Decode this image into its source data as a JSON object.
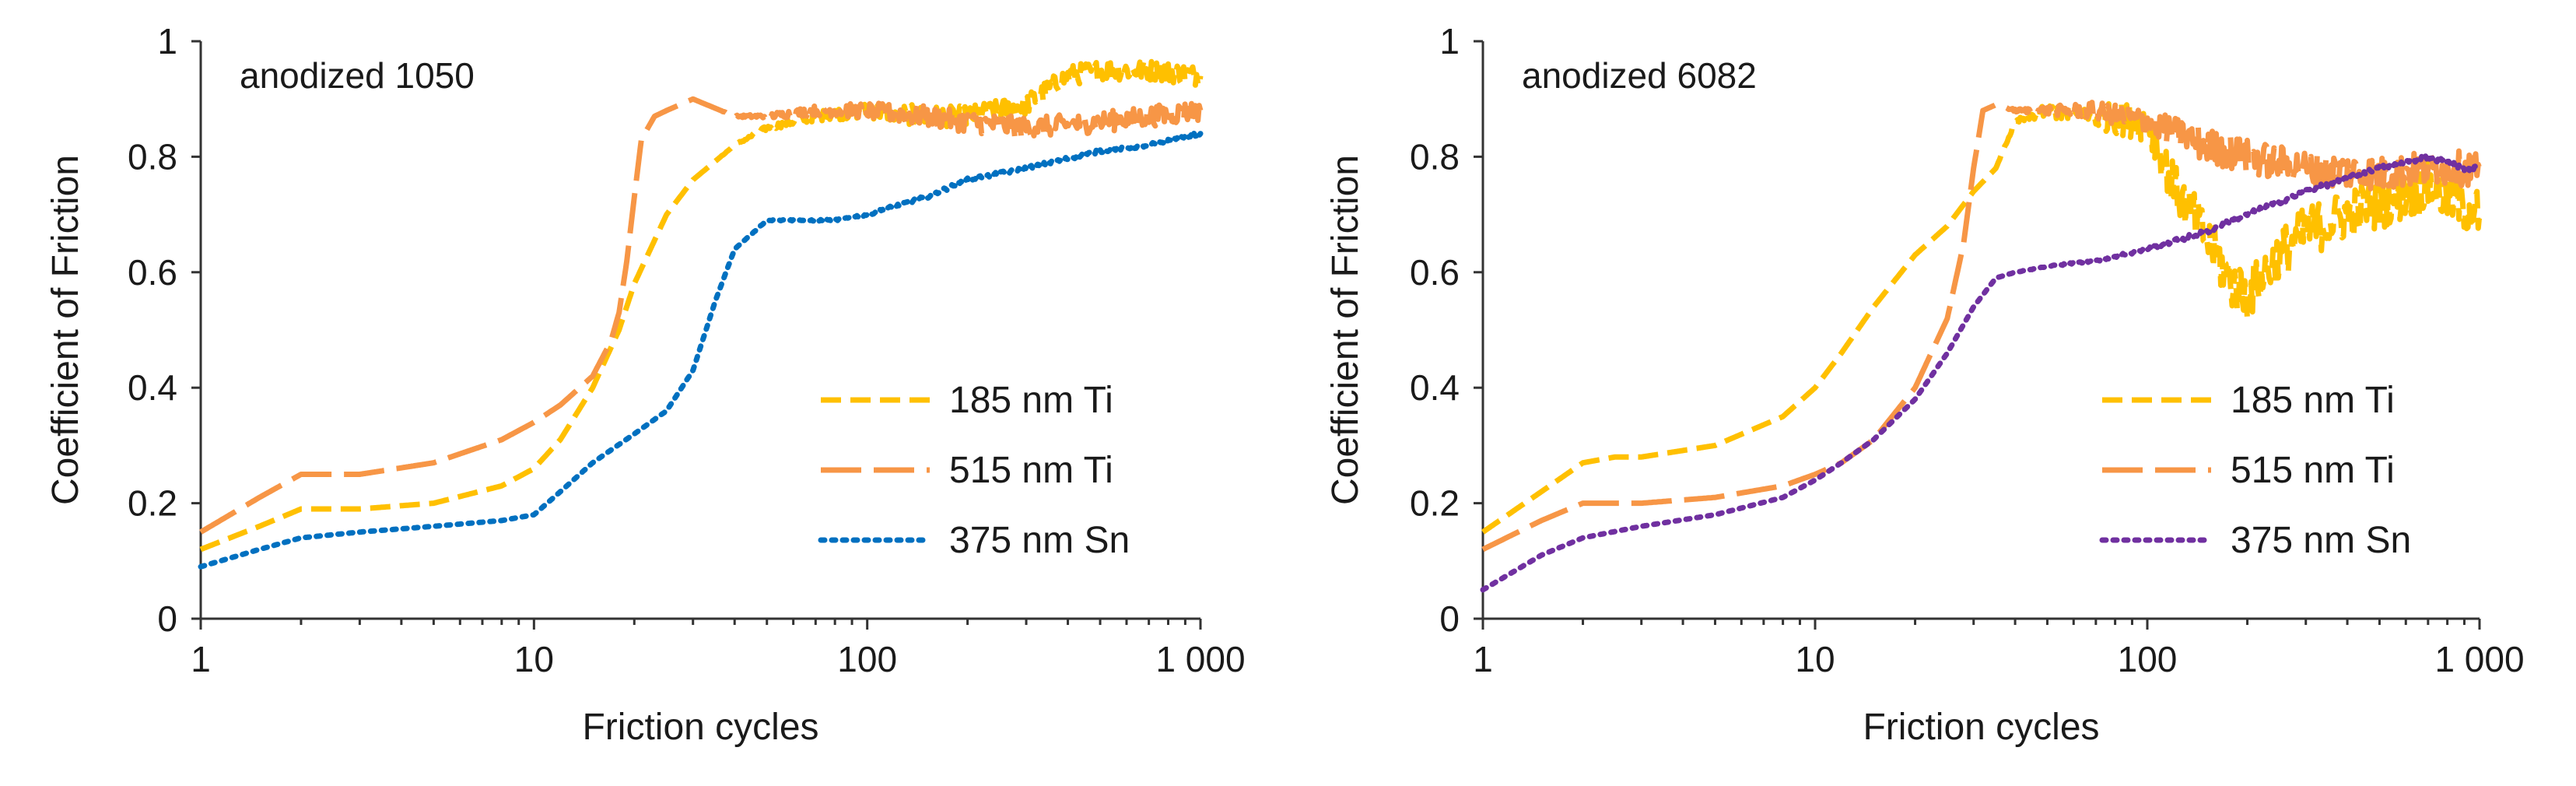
{
  "chart_data": [
    {
      "type": "line",
      "title": "anodized 1050",
      "xlabel": "Friction cycles",
      "ylabel": "Coefficient  of  Friction",
      "x_scale": "log",
      "xlim": [
        1,
        1000
      ],
      "ylim": [
        0,
        1
      ],
      "x_ticks": [
        1,
        10,
        100,
        1000
      ],
      "x_tick_labels": [
        "1",
        "10",
        "100",
        "1 000"
      ],
      "y_ticks": [
        0,
        0.2,
        0.4,
        0.6,
        0.8,
        1
      ],
      "y_tick_labels": [
        "0",
        "0.2",
        "0.4",
        "0.6",
        "0.8",
        "1"
      ],
      "legend_position": "bottom-right",
      "series": [
        {
          "name": "185 nm Ti",
          "color": "#FFC000",
          "dash": "short-dash",
          "x": [
            1,
            1.5,
            2,
            3,
            5,
            8,
            10,
            12,
            15,
            18,
            20,
            25,
            30,
            40,
            50,
            70,
            100,
            150,
            200,
            300,
            400,
            500,
            700,
            1000
          ],
          "y": [
            0.12,
            0.16,
            0.19,
            0.19,
            0.2,
            0.23,
            0.26,
            0.31,
            0.4,
            0.5,
            0.58,
            0.7,
            0.76,
            0.82,
            0.85,
            0.87,
            0.88,
            0.87,
            0.87,
            0.89,
            0.94,
            0.95,
            0.95,
            0.94
          ],
          "noise": 0.018
        },
        {
          "name": "515 nm Ti",
          "color": "#F79646",
          "dash": "long-dash",
          "x": [
            1,
            1.5,
            2,
            3,
            5,
            8,
            10,
            12,
            15,
            17,
            18,
            19,
            20,
            21,
            23,
            25,
            30,
            40,
            50,
            70,
            100,
            150,
            200,
            300,
            500,
            700,
            1000
          ],
          "y": [
            0.15,
            0.21,
            0.25,
            0.25,
            0.27,
            0.31,
            0.34,
            0.37,
            0.42,
            0.48,
            0.53,
            0.62,
            0.73,
            0.83,
            0.87,
            0.88,
            0.9,
            0.87,
            0.87,
            0.88,
            0.88,
            0.87,
            0.86,
            0.85,
            0.86,
            0.87,
            0.88
          ],
          "noise": 0.018
        },
        {
          "name": "375 nm Sn",
          "color": "#0070C0",
          "dash": "dotted",
          "x": [
            1,
            1.5,
            2,
            3,
            5,
            8,
            10,
            12,
            15,
            20,
            25,
            30,
            35,
            40,
            50,
            60,
            80,
            100,
            150,
            200,
            300,
            500,
            700,
            1000
          ],
          "y": [
            0.09,
            0.12,
            0.14,
            0.15,
            0.16,
            0.17,
            0.18,
            0.22,
            0.27,
            0.32,
            0.36,
            0.43,
            0.55,
            0.64,
            0.69,
            0.69,
            0.69,
            0.7,
            0.73,
            0.76,
            0.78,
            0.81,
            0.82,
            0.84
          ],
          "noise": 0.003
        }
      ]
    },
    {
      "type": "line",
      "title": "anodized 6082",
      "xlabel": "Friction cycles",
      "ylabel": "Coefficient  of  Friction",
      "x_scale": "log",
      "xlim": [
        1,
        1000
      ],
      "ylim": [
        0,
        1
      ],
      "x_ticks": [
        1,
        10,
        100,
        1000
      ],
      "x_tick_labels": [
        "1",
        "10",
        "100",
        "1 000"
      ],
      "y_ticks": [
        0,
        0.2,
        0.4,
        0.6,
        0.8,
        1
      ],
      "y_tick_labels": [
        "0",
        "0.2",
        "0.4",
        "0.6",
        "0.8",
        "1"
      ],
      "legend_position": "bottom-right",
      "series": [
        {
          "name": "185 nm Ti",
          "color": "#FFC000",
          "dash": "short-dash",
          "x": [
            1,
            1.5,
            2,
            2.5,
            3,
            5,
            8,
            10,
            12,
            15,
            20,
            25,
            30,
            35,
            40,
            50,
            70,
            100,
            120,
            150,
            180,
            200,
            250,
            300,
            400,
            500,
            700,
            1000
          ],
          "y": [
            0.15,
            0.22,
            0.27,
            0.28,
            0.28,
            0.3,
            0.35,
            0.4,
            0.46,
            0.54,
            0.63,
            0.68,
            0.74,
            0.78,
            0.86,
            0.88,
            0.87,
            0.86,
            0.75,
            0.66,
            0.58,
            0.56,
            0.63,
            0.67,
            0.7,
            0.72,
            0.75,
            0.7
          ],
          "noise": 0.045
        },
        {
          "name": "515 nm Ti",
          "color": "#F79646",
          "dash": "long-dash",
          "x": [
            1,
            1.5,
            2,
            3,
            5,
            8,
            10,
            12,
            15,
            20,
            25,
            28,
            30,
            32,
            35,
            40,
            50,
            70,
            100,
            150,
            200,
            300,
            500,
            700,
            1000
          ],
          "y": [
            0.12,
            0.17,
            0.2,
            0.2,
            0.21,
            0.23,
            0.25,
            0.27,
            0.31,
            0.4,
            0.52,
            0.65,
            0.78,
            0.88,
            0.89,
            0.88,
            0.88,
            0.88,
            0.86,
            0.82,
            0.8,
            0.78,
            0.77,
            0.78,
            0.78
          ],
          "noise": 0.03
        },
        {
          "name": "375 nm Sn",
          "color": "#7030A0",
          "dash": "dotted",
          "x": [
            1,
            1.5,
            2,
            3,
            5,
            8,
            10,
            12,
            15,
            20,
            25,
            30,
            35,
            40,
            50,
            70,
            100,
            150,
            200,
            300,
            500,
            700,
            800,
            900,
            1000
          ],
          "y": [
            0.05,
            0.11,
            0.14,
            0.16,
            0.18,
            0.21,
            0.24,
            0.27,
            0.31,
            0.38,
            0.46,
            0.54,
            0.59,
            0.6,
            0.61,
            0.62,
            0.64,
            0.67,
            0.7,
            0.74,
            0.78,
            0.8,
            0.79,
            0.78,
            0.78
          ],
          "noise": 0.004
        }
      ]
    }
  ]
}
